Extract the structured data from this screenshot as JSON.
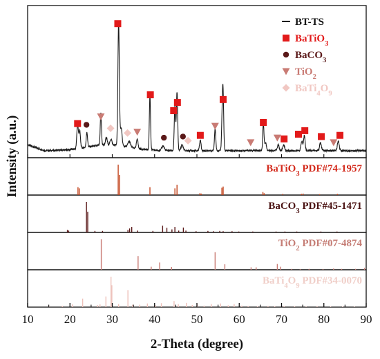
{
  "chart_data": {
    "type": "line",
    "xlabel": "2-Theta (degree)",
    "ylabel": "Intensity (a.u.)",
    "xlim": [
      10,
      90
    ],
    "xticks": [
      10,
      20,
      30,
      40,
      50,
      60,
      70,
      80,
      90
    ],
    "colors": {
      "BT-TS": "#1a1a1a",
      "BaTiO3": "#e21a1a",
      "BaCO3": "#5a1818",
      "TiO2": "#c97b74",
      "BaTi4O9": "#f1c7c2",
      "ref_BaTiO3": "#c2441d",
      "ref_BaCO3": "#5a1818",
      "ref_TiO2": "#c97b74",
      "ref_BaTi4O9": "#eec1ba",
      "text_BaTiO3": "#d32a1c",
      "text_BaCO3": "#4a1212",
      "text_TiO2": "#c57d75",
      "text_BaTi4O9": "#f0cfc9"
    },
    "legend": {
      "position": "top-right",
      "entries": [
        {
          "key": "BT-TS",
          "marker": "line",
          "base": "BT-TS",
          "sub": "",
          "tail": ""
        },
        {
          "key": "BaTiO3",
          "marker": "square",
          "base": "BaTiO",
          "sub": "3",
          "tail": ""
        },
        {
          "key": "BaCO3",
          "marker": "circle",
          "base": "BaCO",
          "sub": "3",
          "tail": ""
        },
        {
          "key": "TiO2",
          "marker": "triangle",
          "base": "TiO",
          "sub": "2",
          "tail": ""
        },
        {
          "key": "BaTi4O9",
          "marker": "diamond",
          "base": "BaTi",
          "sub": "4",
          "tail": "O9"
        }
      ]
    },
    "pattern": {
      "name": "BT-TS",
      "baseline": 12,
      "peaks": [
        [
          21.8,
          42,
          0.25
        ],
        [
          22.3,
          30,
          0.25
        ],
        [
          24.0,
          26,
          0.22
        ],
        [
          27.3,
          55,
          0.2
        ],
        [
          28.6,
          12,
          0.3
        ],
        [
          29.7,
          10,
          0.3
        ],
        [
          31.5,
          210,
          0.24
        ],
        [
          32.1,
          30,
          0.3
        ],
        [
          34.0,
          10,
          0.4
        ],
        [
          35.9,
          17,
          0.25
        ],
        [
          38.9,
          92,
          0.2
        ],
        [
          42.0,
          8,
          0.4
        ],
        [
          44.8,
          75,
          0.22
        ],
        [
          45.3,
          100,
          0.22
        ],
        [
          46.5,
          10,
          0.35
        ],
        [
          50.8,
          18,
          0.25
        ],
        [
          54.3,
          38,
          0.22
        ],
        [
          56.0,
          60,
          0.22
        ],
        [
          56.2,
          80,
          0.2
        ],
        [
          65.7,
          46,
          0.2
        ],
        [
          66.2,
          14,
          0.3
        ],
        [
          69.2,
          10,
          0.3
        ],
        [
          70.5,
          10,
          0.3
        ],
        [
          74.8,
          16,
          0.3
        ],
        [
          75.4,
          26,
          0.25
        ],
        [
          79.2,
          13,
          0.3
        ],
        [
          83.4,
          16,
          0.3
        ]
      ],
      "markers": [
        {
          "phase": "BaTiO3",
          "shape": "square",
          "x": 21.8,
          "y": 58
        },
        {
          "phase": "BaCO3",
          "shape": "circle",
          "x": 23.9,
          "y": 56
        },
        {
          "phase": "TiO2",
          "shape": "triangle",
          "x": 27.3,
          "y": 70
        },
        {
          "phase": "BaTi4O9",
          "shape": "diamond",
          "x": 29.6,
          "y": 50
        },
        {
          "phase": "BaTiO3",
          "shape": "square",
          "x": 31.3,
          "y": 228
        },
        {
          "phase": "BaTi4O9",
          "shape": "diamond",
          "x": 33.6,
          "y": 42
        },
        {
          "phase": "TiO2",
          "shape": "triangle",
          "x": 35.9,
          "y": 44
        },
        {
          "phase": "BaTiO3",
          "shape": "square",
          "x": 39.0,
          "y": 107
        },
        {
          "phase": "BaCO3",
          "shape": "circle",
          "x": 42.2,
          "y": 34
        },
        {
          "phase": "BaTiO3",
          "shape": "square",
          "x": 44.5,
          "y": 80
        },
        {
          "phase": "BaTiO3",
          "shape": "square",
          "x": 45.4,
          "y": 94
        },
        {
          "phase": "BaCO3",
          "shape": "circle",
          "x": 46.7,
          "y": 36
        },
        {
          "phase": "BaTi4O9",
          "shape": "diamond",
          "x": 47.9,
          "y": 29
        },
        {
          "phase": "BaTiO3",
          "shape": "square",
          "x": 50.8,
          "y": 38
        },
        {
          "phase": "TiO2",
          "shape": "triangle",
          "x": 54.3,
          "y": 54
        },
        {
          "phase": "BaTiO3",
          "shape": "square",
          "x": 56.2,
          "y": 99
        },
        {
          "phase": "TiO2",
          "shape": "triangle",
          "x": 62.7,
          "y": 26
        },
        {
          "phase": "BaTiO3",
          "shape": "square",
          "x": 65.7,
          "y": 60
        },
        {
          "phase": "TiO2",
          "shape": "triangle",
          "x": 69.0,
          "y": 34
        },
        {
          "phase": "BaTiO3",
          "shape": "square",
          "x": 70.6,
          "y": 32
        },
        {
          "phase": "BaTiO3",
          "shape": "square",
          "x": 74.0,
          "y": 40
        },
        {
          "phase": "BaTiO3",
          "shape": "square",
          "x": 75.5,
          "y": 46
        },
        {
          "phase": "BaTiO3",
          "shape": "square",
          "x": 79.4,
          "y": 36
        },
        {
          "phase": "TiO2",
          "shape": "triangle",
          "x": 82.3,
          "y": 26
        },
        {
          "phase": "BaTiO3",
          "shape": "square",
          "x": 83.8,
          "y": 38
        }
      ]
    },
    "references": [
      {
        "phase": "BaTiO3",
        "label_base": "BaTiO",
        "label_sub": "3",
        "label_tail": " PDF#74-1957",
        "sticks": [
          [
            21.9,
            26
          ],
          [
            22.2,
            22
          ],
          [
            31.4,
            100
          ],
          [
            31.7,
            66
          ],
          [
            38.9,
            26
          ],
          [
            44.8,
            22
          ],
          [
            45.3,
            34
          ],
          [
            50.7,
            6
          ],
          [
            51.0,
            5
          ],
          [
            55.9,
            24
          ],
          [
            56.2,
            28
          ],
          [
            65.6,
            10
          ],
          [
            65.9,
            6
          ],
          [
            70.3,
            4
          ],
          [
            74.7,
            4
          ],
          [
            75.1,
            5
          ],
          [
            79.0,
            3
          ],
          [
            83.2,
            4
          ]
        ]
      },
      {
        "phase": "BaCO3",
        "label_base": "BaCO",
        "label_sub": "3",
        "label_tail": "  PDF#45-1471",
        "sticks": [
          [
            19.4,
            8
          ],
          [
            19.7,
            6
          ],
          [
            23.9,
            100
          ],
          [
            24.2,
            68
          ],
          [
            25.9,
            5
          ],
          [
            27.7,
            5
          ],
          [
            33.7,
            8
          ],
          [
            34.1,
            13
          ],
          [
            34.6,
            18
          ],
          [
            36.0,
            6
          ],
          [
            39.6,
            5
          ],
          [
            41.9,
            22
          ],
          [
            42.9,
            15
          ],
          [
            44.1,
            10
          ],
          [
            44.8,
            18
          ],
          [
            45.7,
            6
          ],
          [
            46.8,
            16
          ],
          [
            47.4,
            6
          ],
          [
            49.8,
            4
          ],
          [
            52.6,
            5
          ],
          [
            53.9,
            4
          ],
          [
            55.4,
            5
          ],
          [
            56.2,
            4
          ],
          [
            58.3,
            4
          ],
          [
            59.9,
            3
          ],
          [
            63.2,
            3
          ],
          [
            68.7,
            3
          ],
          [
            70.8,
            3
          ],
          [
            73.6,
            3
          ],
          [
            79.3,
            3
          ],
          [
            83.1,
            3
          ]
        ]
      },
      {
        "phase": "TiO2",
        "label_base": "TiO",
        "label_sub": "2",
        "label_tail": " PDF#07-4874",
        "sticks": [
          [
            27.4,
            100
          ],
          [
            36.1,
            45
          ],
          [
            39.2,
            10
          ],
          [
            41.2,
            24
          ],
          [
            44.0,
            9
          ],
          [
            54.3,
            58
          ],
          [
            56.6,
            18
          ],
          [
            62.8,
            8
          ],
          [
            64.0,
            8
          ],
          [
            69.0,
            19
          ],
          [
            69.8,
            10
          ],
          [
            72.4,
            3
          ],
          [
            74.4,
            2
          ],
          [
            76.5,
            3
          ],
          [
            79.8,
            2
          ],
          [
            82.3,
            4
          ],
          [
            84.2,
            3
          ],
          [
            87.5,
            3
          ],
          [
            89.6,
            6
          ]
        ]
      },
      {
        "phase": "BaTi4O9",
        "label_base": "BaTi",
        "label_sub": "4",
        "label_tail": "O9 PDF#34-0070",
        "sticks": [
          [
            15.0,
            6
          ],
          [
            18.2,
            4
          ],
          [
            20.6,
            9
          ],
          [
            23.0,
            28
          ],
          [
            26.5,
            7
          ],
          [
            27.1,
            9
          ],
          [
            28.5,
            35
          ],
          [
            29.7,
            100
          ],
          [
            29.9,
            72
          ],
          [
            31.5,
            10
          ],
          [
            33.7,
            56
          ],
          [
            34.8,
            8
          ],
          [
            36.5,
            8
          ],
          [
            38.3,
            12
          ],
          [
            40.2,
            6
          ],
          [
            41.6,
            13
          ],
          [
            44.6,
            20
          ],
          [
            45.6,
            10
          ],
          [
            47.5,
            14
          ],
          [
            48.9,
            7
          ],
          [
            50.1,
            10
          ],
          [
            51.7,
            5
          ],
          [
            53.4,
            10
          ],
          [
            55.6,
            12
          ],
          [
            57.4,
            6
          ],
          [
            58.8,
            10
          ],
          [
            60.6,
            5
          ],
          [
            62.1,
            4
          ],
          [
            64.3,
            3
          ],
          [
            66.8,
            4
          ],
          [
            68.4,
            3
          ],
          [
            70.6,
            3
          ],
          [
            73.1,
            3
          ],
          [
            75.8,
            2
          ],
          [
            78.4,
            3
          ],
          [
            81.6,
            2
          ],
          [
            84.4,
            2
          ],
          [
            87.2,
            2
          ]
        ]
      }
    ]
  }
}
